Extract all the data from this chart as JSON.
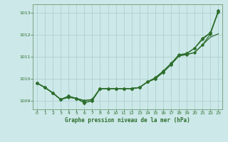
{
  "xlabel": "Graphe pression niveau de la mer (hPa)",
  "bg_color": "#cce8e8",
  "grid_color": "#aacccc",
  "line_color": "#2d6e2d",
  "ylim": [
    1008.6,
    1013.4
  ],
  "xlim": [
    -0.5,
    23.5
  ],
  "yticks": [
    1009,
    1010,
    1011,
    1012,
    1013
  ],
  "xticks": [
    0,
    1,
    2,
    3,
    4,
    5,
    6,
    7,
    8,
    9,
    10,
    11,
    12,
    13,
    14,
    15,
    16,
    17,
    18,
    19,
    20,
    21,
    22,
    23
  ],
  "line1_smooth": [
    1009.8,
    1009.6,
    1009.35,
    1009.05,
    1009.15,
    1009.1,
    1009.0,
    1009.05,
    1009.55,
    1009.55,
    1009.55,
    1009.55,
    1009.55,
    1009.6,
    1009.85,
    1010.0,
    1010.3,
    1010.65,
    1011.05,
    1011.1,
    1011.2,
    1011.55,
    1011.9,
    1012.05
  ],
  "line2_markers": [
    1009.8,
    1009.6,
    1009.35,
    1009.05,
    1009.15,
    1009.1,
    1009.0,
    1009.05,
    1009.55,
    1009.55,
    1009.55,
    1009.55,
    1009.55,
    1009.6,
    1009.85,
    1010.0,
    1010.3,
    1010.65,
    1011.05,
    1011.1,
    1011.2,
    1011.55,
    1012.05,
    1013.1
  ],
  "line3_markers": [
    1009.8,
    1009.6,
    1009.35,
    1009.05,
    1009.2,
    1009.1,
    1008.9,
    1009.0,
    1009.55,
    1009.55,
    1009.55,
    1009.55,
    1009.55,
    1009.6,
    1009.85,
    1010.0,
    1010.3,
    1010.65,
    1011.05,
    1011.15,
    1011.4,
    1011.8,
    1012.1,
    1013.1
  ],
  "line4_markers": [
    1009.8,
    1009.6,
    1009.35,
    1009.05,
    1009.2,
    1009.1,
    1008.9,
    1009.0,
    1009.55,
    1009.55,
    1009.55,
    1009.55,
    1009.55,
    1009.6,
    1009.85,
    1010.05,
    1010.35,
    1010.7,
    1011.1,
    1011.15,
    1011.4,
    1011.85,
    1012.1,
    1013.05
  ]
}
